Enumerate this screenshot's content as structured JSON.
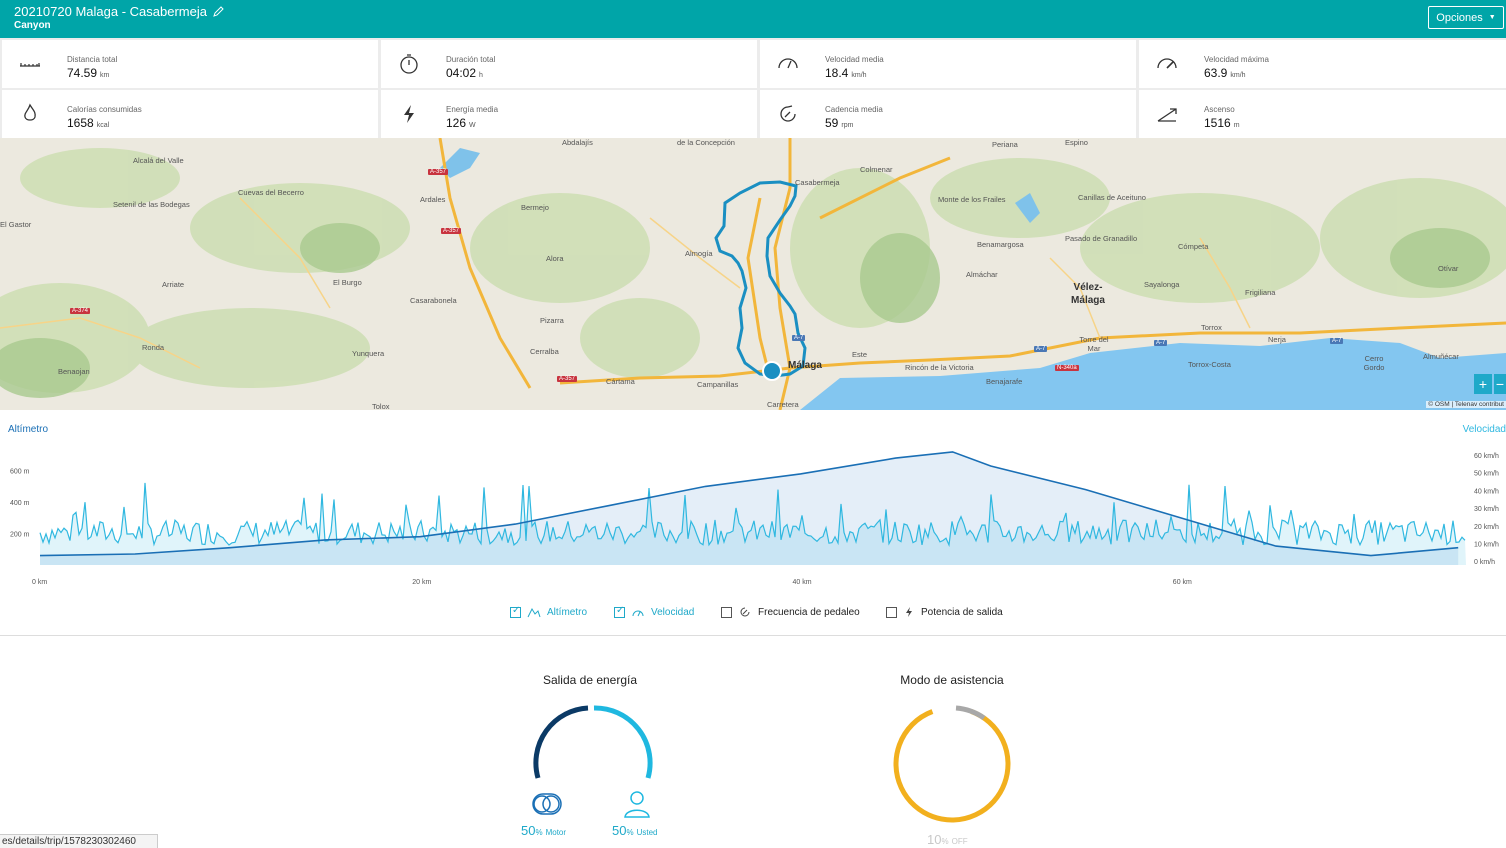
{
  "header": {
    "title": "20210720 Malaga - Casabermeja",
    "subtitle": "Canyon",
    "options_label": "Opciones"
  },
  "stats": [
    {
      "label": "Distancia total",
      "value": "74.59",
      "unit": "km",
      "icon": "ruler-icon"
    },
    {
      "label": "Duración total",
      "value": "04:02",
      "unit": "h",
      "icon": "stopwatch-icon"
    },
    {
      "label": "Velocidad media",
      "value": "18.4",
      "unit": "km/h",
      "icon": "gauge-icon"
    },
    {
      "label": "Velocidad máxima",
      "value": "63.9",
      "unit": "km/h",
      "icon": "gauge-max-icon"
    },
    {
      "label": "Calorías consumidas",
      "value": "1658",
      "unit": "kcal",
      "icon": "flame-icon"
    },
    {
      "label": "Energía media",
      "value": "126",
      "unit": "W",
      "icon": "lightning-icon"
    },
    {
      "label": "Cadencia media",
      "value": "59",
      "unit": "rpm",
      "icon": "cadence-icon"
    },
    {
      "label": "Ascenso",
      "value": "1516",
      "unit": "m",
      "icon": "ascent-icon"
    }
  ],
  "map": {
    "places": [
      "Alcalá del Valle",
      "Setenil de las Bodegas",
      "El Gastor",
      "Cuevas del Becerro",
      "Ardales",
      "Bermejo",
      "Abdalajís",
      "de la Concepción",
      "Casabermeja",
      "Colmenar",
      "Periana",
      "Espino",
      "Canillas de Aceituno",
      "Monte de los Frailes",
      "Pasado de Granadillo",
      "Alora",
      "Almogía",
      "Arriate",
      "Ronda",
      "El Burgo",
      "Casarabonela",
      "Pizarra",
      "Cerralba",
      "Benaojan",
      "Yunquera",
      "Tolox",
      "Cártama",
      "Campanillas",
      "Málaga",
      "Carretera",
      "Este",
      "Rincón de la Victoria",
      "Benajarafe",
      "Almáchar",
      "Benamargosa",
      "Vélez-Málaga",
      "Sayalonga",
      "Cómpeta",
      "Frigiliana",
      "Otívar",
      "Torrox",
      "Torre del Mar",
      "Torrox-Costa",
      "Nerja",
      "Cerro Gordo",
      "Almuñécar"
    ],
    "roads": [
      "A-357",
      "A-357",
      "A-374",
      "A-357",
      "A-7",
      "A-7",
      "A-7",
      "A-7",
      "N-340a"
    ],
    "attribution": "© OSM | Telenav contribut",
    "zoom_in": "+",
    "zoom_out": "−"
  },
  "chart": {
    "left_axis_title": "Altímetro",
    "right_axis_title": "Velocidad",
    "left_ticks": [
      "600 m",
      "400 m",
      "200 m"
    ],
    "right_ticks": [
      "60 km/h",
      "50 km/h",
      "40 km/h",
      "30 km/h",
      "20 km/h",
      "10 km/h",
      "0 km/h"
    ],
    "x_ticks": [
      "0 km",
      "20 km",
      "40 km",
      "60 km"
    ]
  },
  "chart_data": {
    "type": "line",
    "x": [
      0,
      5,
      10,
      15,
      20,
      25,
      30,
      35,
      40,
      45,
      48,
      50,
      55,
      60,
      65,
      70,
      74.59
    ],
    "series": [
      {
        "name": "Altímetro",
        "values": [
          60,
          70,
          110,
          160,
          180,
          260,
          380,
          500,
          580,
          680,
          720,
          630,
          480,
          300,
          120,
          60,
          110
        ]
      }
    ],
    "xlim": [
      0,
      75
    ],
    "ylim": [
      0,
      700
    ],
    "y2lim": [
      0,
      60
    ]
  },
  "legend": [
    {
      "label": "Altímetro",
      "checked": true,
      "icon": "altimeter-icon"
    },
    {
      "label": "Velocidad",
      "checked": true,
      "icon": "gauge-icon"
    },
    {
      "label": "Frecuencia de pedaleo",
      "checked": false,
      "icon": "cadence-icon"
    },
    {
      "label": "Potencia de salida",
      "checked": false,
      "icon": "lightning-icon"
    }
  ],
  "energy": {
    "title": "Salida de energía",
    "motor_pct": "50",
    "motor_label": "Motor",
    "user_pct": "50",
    "user_label": "Usted",
    "pct_sign": "%",
    "colors": {
      "motor": "#0b3a66",
      "user": "#1fb8e0"
    }
  },
  "assist": {
    "title": "Modo de asistencia",
    "off_pct": "10",
    "off_label": "OFF",
    "pct_sign": "%",
    "colors": {
      "main": "#f2b01e",
      "off": "#a8a8a8"
    }
  },
  "status_url": "es/details/trip/1578230302460"
}
